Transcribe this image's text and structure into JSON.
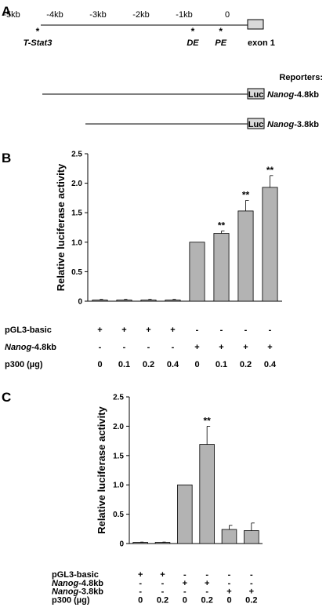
{
  "panel_a": {
    "label": "A",
    "ruler": [
      "-5kb",
      "-4kb",
      "-3kb",
      "-2kb",
      "-1kb",
      "0"
    ],
    "sites": [
      {
        "name": "T-Stat3",
        "kb": -4.4
      },
      {
        "name": "DE",
        "kb": -0.8
      },
      {
        "name": "PE",
        "kb": -0.15
      }
    ],
    "exon_label": "exon 1",
    "reporters_title": "Reporters:",
    "reporters": [
      {
        "prefix": "Nanog",
        "suffix": "-4.8kb",
        "start_kb": -4.8,
        "box": "Luc"
      },
      {
        "prefix": "Nanog",
        "suffix": "-3.8kb",
        "start_kb": -3.8,
        "box": "Luc"
      }
    ]
  },
  "chart_data": [
    {
      "panel": "B",
      "type": "bar",
      "ylabel": "Relative luciferase activity",
      "ylim": [
        0,
        2.5
      ],
      "yticks": [
        "0",
        "0.5",
        "1.0",
        "1.5",
        "2.0",
        "2.5"
      ],
      "values": [
        0.02,
        0.02,
        0.02,
        0.02,
        1.0,
        1.15,
        1.53,
        1.93
      ],
      "errors": [
        0.01,
        0.01,
        0.01,
        0.01,
        0.0,
        0.04,
        0.18,
        0.2
      ],
      "significance": [
        "",
        "",
        "",
        "",
        "",
        "**",
        "**",
        "**"
      ],
      "bar_color": "#b3b3b3",
      "rows": [
        {
          "prefix": "pGL3-basic",
          "suffix": "",
          "cells": [
            "+",
            "+",
            "+",
            "+",
            "-",
            "-",
            "-",
            "-"
          ]
        },
        {
          "prefix": "Nanog",
          "suffix": "-4.8kb",
          "cells": [
            "-",
            "-",
            "-",
            "-",
            "+",
            "+",
            "+",
            "+"
          ]
        },
        {
          "prefix": "p300 (µg)",
          "suffix": "",
          "cells": [
            "0",
            "0.1",
            "0.2",
            "0.4",
            "0",
            "0.1",
            "0.2",
            "0.4"
          ]
        }
      ]
    },
    {
      "panel": "C",
      "type": "bar",
      "ylabel": "Relative luciferase activity",
      "ylim": [
        0,
        2.5
      ],
      "yticks": [
        "0",
        "0.5",
        "1.0",
        "1.5",
        "2.0",
        "2.5"
      ],
      "values": [
        0.02,
        0.02,
        1.0,
        1.69,
        0.24,
        0.22
      ],
      "errors": [
        0.005,
        0.005,
        0.0,
        0.31,
        0.07,
        0.13
      ],
      "significance": [
        "",
        "",
        "",
        "**",
        "",
        ""
      ],
      "bar_color": "#b3b3b3",
      "rows": [
        {
          "prefix": "pGL3-basic",
          "suffix": "",
          "cells": [
            "+",
            "+",
            "-",
            "-",
            "-",
            "-"
          ]
        },
        {
          "prefix": "Nanog",
          "suffix": "-4.8kb",
          "cells": [
            "-",
            "-",
            "+",
            "+",
            "-",
            "-"
          ]
        },
        {
          "prefix": "Nanog",
          "suffix": "-3.8kb",
          "cells": [
            "-",
            "-",
            "-",
            "-",
            "+",
            "+"
          ]
        },
        {
          "prefix": "p300 (µg)",
          "suffix": "",
          "cells": [
            "0",
            "0.2",
            "0",
            "0.2",
            "0",
            "0.2"
          ]
        }
      ]
    }
  ]
}
